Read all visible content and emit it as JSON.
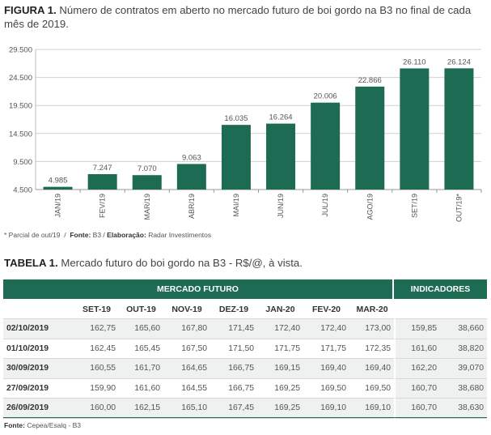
{
  "figure": {
    "label": "FIGURA 1.",
    "title": "Número de contratos em aberto no mercado futuro de boi gordo na B3 no final de cada mês de 2019."
  },
  "chart_data": {
    "type": "bar",
    "categories": [
      "JAN/19",
      "FEV/19",
      "MAR/19",
      "ABR/19",
      "MAI/19",
      "JUN/19",
      "JUL/19",
      "AGO/19",
      "SET/19",
      "OUT/19*"
    ],
    "values": [
      4985,
      7247,
      7070,
      9063,
      16035,
      16264,
      20006,
      22866,
      26110,
      26124
    ],
    "value_labels": [
      "4.985",
      "7.247",
      "7.070",
      "9.063",
      "16.035",
      "16.264",
      "20.006",
      "22.866",
      "26.110",
      "26.124"
    ],
    "yticks": [
      4500,
      9500,
      14500,
      19500,
      24500,
      29500
    ],
    "ytick_labels": [
      "4.500",
      "9.500",
      "14.500",
      "19.500",
      "24.500",
      "29.500"
    ],
    "ylim": [
      4500,
      29500
    ],
    "grid": true,
    "bar_color": "#1e6b53"
  },
  "footnote": {
    "note": "* Parcial de out/19",
    "sep": "/",
    "fonte_label": "Fonte:",
    "fonte_value": "B3 /",
    "elab_label": "Elaboração:",
    "elab_value": "Radar Investimentos"
  },
  "table": {
    "label": "TABELA 1.",
    "title": "Mercado futuro do boi gordo na B3 - R$/@, à vista.",
    "group_mercado": "MERCADO FUTURO",
    "group_indicadores": "INDICADORES",
    "columns": [
      "SET-19",
      "OUT-19",
      "NOV-19",
      "DEZ-19",
      "JAN-20",
      "FEV-20",
      "MAR-20"
    ],
    "rows": [
      {
        "date": "02/10/2019",
        "values": [
          "162,75",
          "165,60",
          "167,80",
          "171,45",
          "172,40",
          "172,40",
          "173,00"
        ],
        "ind": [
          "159,85",
          "38,660"
        ]
      },
      {
        "date": "01/10/2019",
        "values": [
          "162,45",
          "165,45",
          "167,50",
          "171,50",
          "171,75",
          "171,75",
          "172,35"
        ],
        "ind": [
          "161,60",
          "38,820"
        ]
      },
      {
        "date": "30/09/2019",
        "values": [
          "160,55",
          "161,70",
          "164,65",
          "166,75",
          "169,15",
          "169,40",
          "169,40"
        ],
        "ind": [
          "162,20",
          "39,070"
        ]
      },
      {
        "date": "27/09/2019",
        "values": [
          "159,90",
          "161,60",
          "164,55",
          "166,75",
          "169,25",
          "169,50",
          "169,50"
        ],
        "ind": [
          "160,70",
          "38,680"
        ]
      },
      {
        "date": "26/09/2019",
        "values": [
          "160,00",
          "162,15",
          "165,10",
          "167,45",
          "169,25",
          "169,10",
          "169,10"
        ],
        "ind": [
          "160,70",
          "38,630"
        ]
      }
    ]
  },
  "source": {
    "label": "Fonte:",
    "value": "Cepea/Esalq - B3"
  }
}
